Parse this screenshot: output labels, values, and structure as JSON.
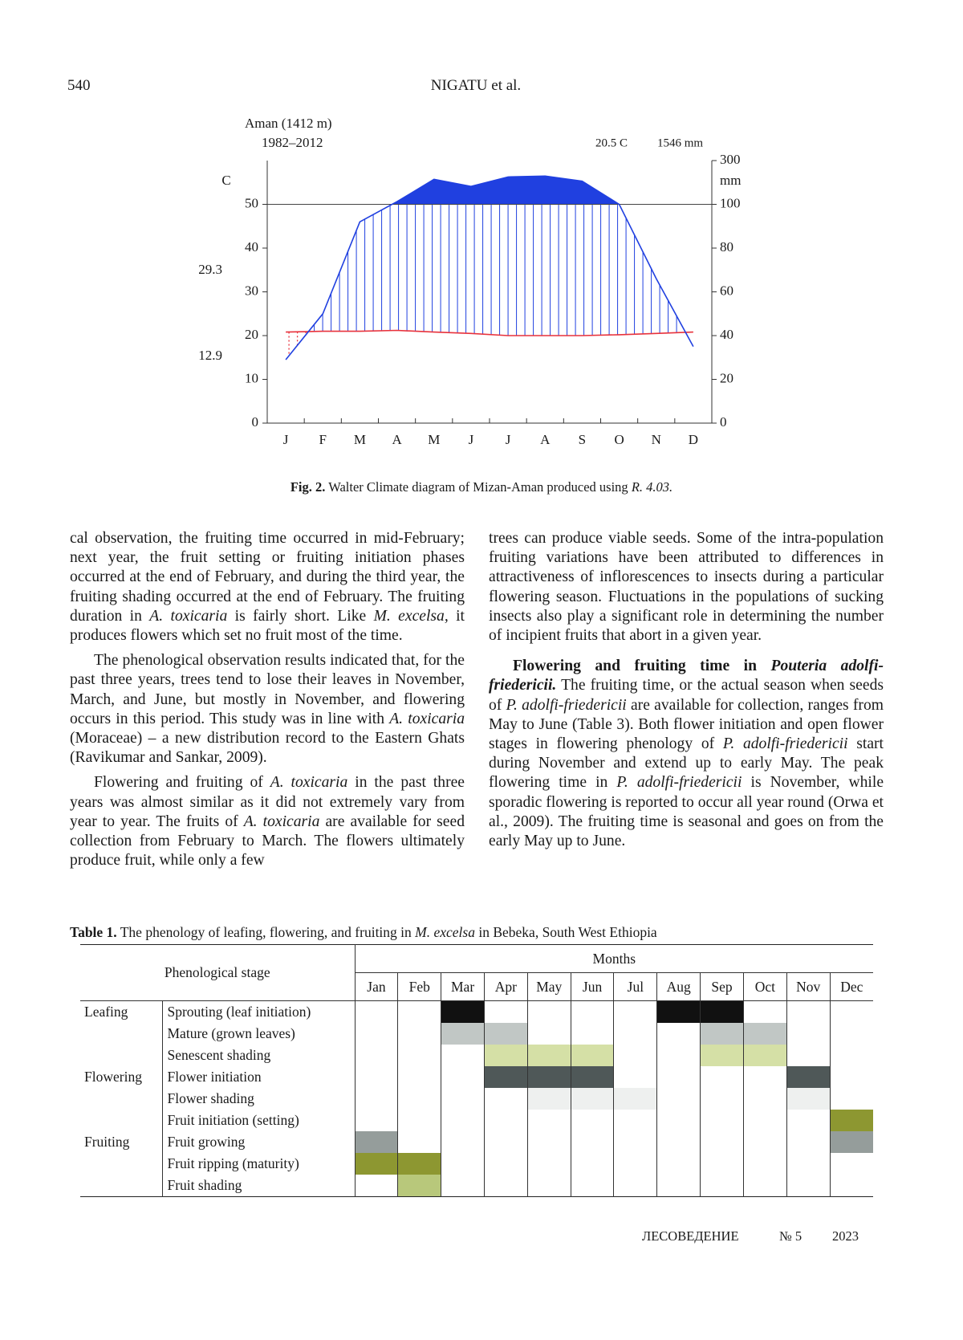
{
  "header": {
    "page_number": "540",
    "running_title": "NIGATU et al."
  },
  "chart_data": {
    "type": "line",
    "station": "Aman (1412 m)",
    "period": "1982–2012",
    "mean_temperature": "20.5 C",
    "annual_precipitation": "1546 mm",
    "ylabel": "C",
    "y2label": "mm",
    "annotations": [
      "29.3",
      "12.9"
    ],
    "categories": [
      "J",
      "F",
      "M",
      "A",
      "M",
      "J",
      "J",
      "A",
      "S",
      "O",
      "N",
      "D"
    ],
    "series": [
      {
        "color": "#e8323c",
        "values": [
          20.8,
          21.0,
          21.0,
          21.2,
          20.8,
          20.5,
          20.0,
          20.0,
          20.0,
          20.2,
          20.5,
          20.8
        ]
      },
      {
        "color": "#2040e0",
        "axis": "y2",
        "values": [
          29,
          50,
          92,
          112,
          214,
          182,
          225,
          229,
          206,
          100,
          66,
          35
        ]
      }
    ],
    "ylim": [
      0,
      60
    ],
    "yticks": [
      0,
      10,
      20,
      30,
      40,
      50
    ],
    "y2lim": [
      0,
      300
    ],
    "y2ticks": [
      0,
      20,
      40,
      60,
      80,
      100,
      300
    ],
    "grid": false
  },
  "figure_caption": {
    "label": "Fig. 2.",
    "text": " Walter Climate diagram of Mizan-Aman produced using ",
    "software": "R. 4.03."
  },
  "body": {
    "left": [
      [
        "cal observation, the fruiting time occurred in mid-February; next year, the fruit setting or fruiting initiation phases occurred at the end of February, and during the third year, the fruiting shading occurred at the end of February. The fruiting duration in ",
        "A. toxicaria",
        " is fairly short. Like ",
        "M. excelsa,",
        " it produces flowers which set no fruit most of the time."
      ],
      [
        "The phenological observation results indicated that, for the past three years, trees tend to lose their leaves in November, March, and June, but mostly in November, and flowering occurs in this period. This study was in line with ",
        "A. toxicaria",
        " (Moraceae) – a new distribution record to the Eastern Ghats (Ravikumar and Sankar, 2009)."
      ],
      [
        "Flowering and fruiting of ",
        "A. toxicaria",
        " in the past three years was almost similar as it did not extremely vary from year to year. The fruits of ",
        "A. toxicaria",
        " are available for seed collection from February to March. The flowers ultimately produce fruit, while only a few"
      ]
    ],
    "right": [
      [
        "trees can produce viable seeds. Some of the intra-population fruiting variations have been attributed to differences in attractiveness of inflorescences to insects during a particular flowering season. Fluctuations in the populations of sucking insects also play a significant role in determining the number of incipient fruits that abort in a given year."
      ],
      [
        "Flowering and fruiting time in ",
        "Pouteria adolfi-friedericii.",
        " The fruiting time, or the actual season when seeds of ",
        "P. adolfi-friedericii",
        " are available for collection, ranges from May to June (Table 3). Both flower initiation and open flower stages in flowering phenology of ",
        "P. adolfi-friedericii",
        " start during November and extend up to early May. The peak flowering time in ",
        "P. adolfi-friedericii",
        " is November, while sporadic flowering is reported to occur all year round (Orwa et al., 2009). The fruiting time is seasonal and goes on from the early May up to June."
      ]
    ]
  },
  "table": {
    "caption": [
      "Table 1.",
      " The phenology of leafing, flowering, and fruiting in ",
      "M. excelsa",
      " in Bebeka, South West Ethiopia"
    ],
    "stage_header": "Phenological stage",
    "months_header": "Months",
    "months": [
      "Jan",
      "Feb",
      "Mar",
      "Apr",
      "May",
      "Jun",
      "Jul",
      "Aug",
      "Sep",
      "Oct",
      "Nov",
      "Dec"
    ],
    "groups": [
      {
        "name": "Leafing",
        "rows": [
          {
            "stage": "Sprouting (leaf initiation)",
            "cells": [
              null,
              null,
              "#111111",
              null,
              null,
              null,
              null,
              "#111111",
              "#111111",
              null,
              null,
              null
            ]
          },
          {
            "stage": "Mature (grown leaves)",
            "cells": [
              null,
              null,
              "#c1c7c5",
              "#c1c7c5",
              null,
              null,
              null,
              null,
              "#c1c7c5",
              "#c1c7c5",
              null,
              null
            ]
          },
          {
            "stage": "Senescent shading",
            "cells": [
              null,
              null,
              null,
              "#d5e0a6",
              "#d5e0a6",
              "#d5e0a6",
              null,
              null,
              "#d5e0a6",
              "#d5e0a6",
              null,
              null
            ]
          }
        ]
      },
      {
        "name": "Flowering",
        "rows": [
          {
            "stage": "Flower initiation",
            "cells": [
              null,
              null,
              null,
              "#4f5858",
              "#4f5858",
              "#4f5858",
              null,
              null,
              null,
              null,
              "#4f5858",
              null
            ]
          },
          {
            "stage": "Flower shading",
            "cells": [
              null,
              null,
              null,
              null,
              "#eef0ef",
              "#eef0ef",
              "#eef0ef",
              null,
              null,
              null,
              "#eef0ef",
              null
            ]
          },
          {
            "stage": "Fruit initiation (setting)",
            "cells": [
              null,
              null,
              null,
              null,
              null,
              null,
              null,
              null,
              null,
              null,
              null,
              "#8d9731"
            ]
          }
        ]
      },
      {
        "name": "Fruiting",
        "rows": [
          {
            "stage": "Fruit growing",
            "cells": [
              "#959d9b",
              null,
              null,
              null,
              null,
              null,
              null,
              null,
              null,
              null,
              null,
              "#959d9b"
            ]
          },
          {
            "stage": "Fruit ripping (maturity)",
            "cells": [
              "#8d9731",
              "#8d9731",
              null,
              null,
              null,
              null,
              null,
              null,
              null,
              null,
              null,
              null
            ]
          },
          {
            "stage": "Fruit shading",
            "cells": [
              null,
              "#b8c87b",
              null,
              null,
              null,
              null,
              null,
              null,
              null,
              null,
              null,
              null
            ]
          }
        ]
      }
    ]
  },
  "footer": {
    "journal": "ЛЕСОВЕДЕНИЕ",
    "issue": "№ 5",
    "year": "2023"
  }
}
